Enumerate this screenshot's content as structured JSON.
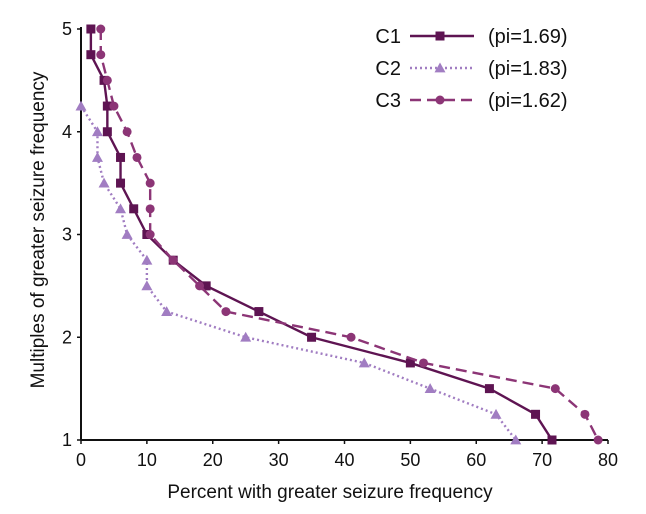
{
  "chart_data": {
    "type": "line",
    "title": "",
    "xlabel": "Percent with greater seizure frequency",
    "ylabel": "Multiples of greater seizure frequency",
    "xlim": [
      0,
      80
    ],
    "ylim": [
      1,
      5
    ],
    "xticks": [
      0,
      10,
      20,
      30,
      40,
      50,
      60,
      70,
      80
    ],
    "yticks": [
      1,
      2,
      3,
      4,
      5
    ],
    "legend_position": "top-right",
    "series": [
      {
        "name": "C1",
        "pi_label": "(pi=1.69)",
        "color": "#5e1452",
        "dash": "solid",
        "marker": "square",
        "x": [
          1.5,
          1.5,
          3.5,
          4,
          4,
          6,
          6,
          8,
          10,
          14,
          19,
          27,
          35,
          50,
          62,
          69,
          71.5
        ],
        "y": [
          5,
          4.75,
          4.5,
          4.25,
          4,
          3.75,
          3.5,
          3.25,
          3,
          2.75,
          2.5,
          2.25,
          2,
          1.75,
          1.5,
          1.25,
          1
        ]
      },
      {
        "name": "C2",
        "pi_label": "(pi=1.83)",
        "color": "#a17dc2",
        "dash": "dotted",
        "marker": "triangle",
        "x": [
          0,
          2.5,
          2.5,
          3.5,
          6,
          7,
          10,
          10,
          13,
          25,
          43,
          53,
          63,
          66
        ],
        "y": [
          4.25,
          4,
          3.75,
          3.5,
          3.25,
          3,
          2.75,
          2.5,
          2.25,
          2,
          1.75,
          1.5,
          1.25,
          1
        ]
      },
      {
        "name": "C3",
        "pi_label": "(pi=1.62)",
        "color": "#8c3576",
        "dash": "dashed",
        "marker": "circle",
        "x": [
          3,
          3,
          4,
          5,
          7,
          8.5,
          10.5,
          10.5,
          10.5,
          14,
          18,
          22,
          41,
          52,
          72,
          76.5,
          78.5
        ],
        "y": [
          5,
          4.75,
          4.5,
          4.25,
          4,
          3.75,
          3.5,
          3.25,
          3,
          2.75,
          2.5,
          2.25,
          2,
          1.75,
          1.5,
          1.25,
          1
        ]
      }
    ]
  }
}
